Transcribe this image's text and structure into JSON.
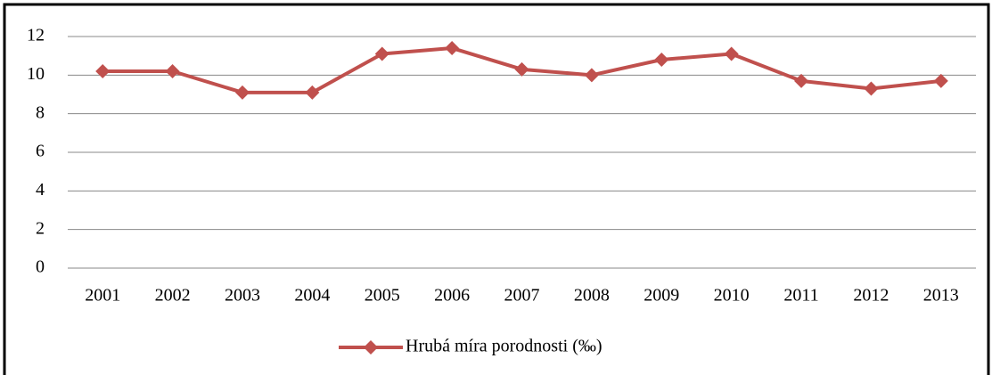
{
  "chart_data": {
    "type": "line",
    "categories": [
      "2001",
      "2002",
      "2003",
      "2004",
      "2005",
      "2006",
      "2007",
      "2008",
      "2009",
      "2010",
      "2011",
      "2012",
      "2013"
    ],
    "series": [
      {
        "name": "Hrubá míra porodnosti (‰)",
        "color": "#c0504d",
        "values": [
          10.2,
          10.2,
          9.1,
          9.1,
          11.1,
          11.4,
          10.3,
          10.0,
          10.8,
          11.1,
          9.7,
          9.3,
          9.7
        ]
      }
    ],
    "ylim": [
      0,
      12
    ],
    "yticks": [
      0,
      2,
      4,
      6,
      8,
      10,
      12
    ],
    "grid": true,
    "legend": "bottom"
  }
}
